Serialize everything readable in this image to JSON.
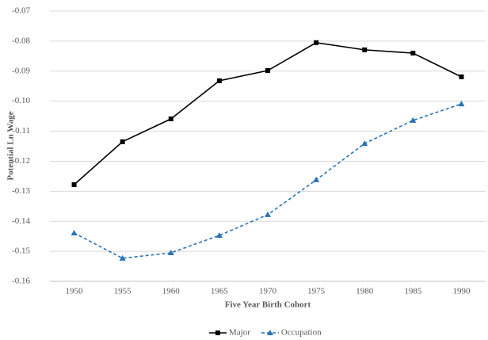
{
  "chart_data": {
    "type": "line",
    "x_label": "Five Year Birth Cohort",
    "y_label": "Potential Ln Wage",
    "categories": [
      "1950",
      "1955",
      "1960",
      "1965",
      "1970",
      "1975",
      "1980",
      "1985",
      "1990"
    ],
    "series": [
      {
        "name": "Major",
        "color": "#000000",
        "dash": false,
        "marker": "square",
        "values": [
          -0.1278,
          -0.1135,
          -0.1059,
          -0.0932,
          -0.0898,
          -0.0805,
          -0.0829,
          -0.084,
          -0.0919
        ]
      },
      {
        "name": "Occupation",
        "color": "#2a72b5",
        "dash": true,
        "marker": "triangle",
        "values": [
          -0.1439,
          -0.1523,
          -0.1505,
          -0.1447,
          -0.1378,
          -0.1262,
          -0.1141,
          -0.1064,
          -0.1009
        ]
      }
    ],
    "ylim": [
      -0.16,
      -0.07
    ],
    "yticks": [
      -0.16,
      -0.15,
      -0.14,
      -0.13,
      -0.12,
      -0.11,
      {
        "value": -0.1,
        "label": "-0.10"
      },
      -0.09,
      -0.08,
      -0.07
    ],
    "grid": true
  }
}
